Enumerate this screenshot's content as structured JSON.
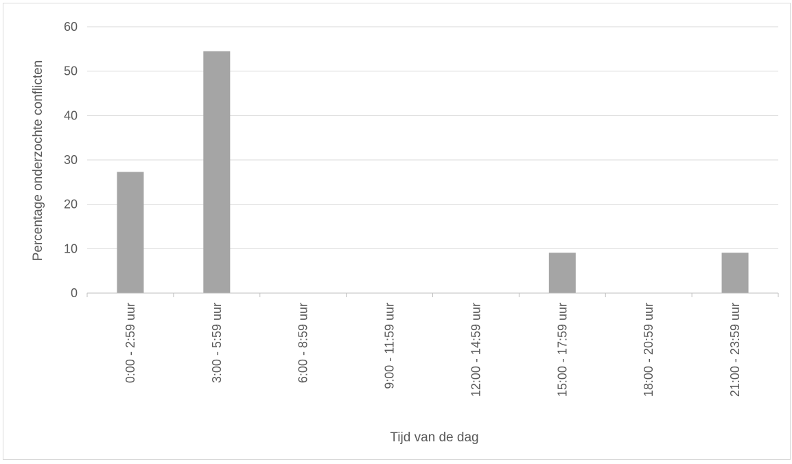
{
  "chart_data": {
    "type": "bar",
    "title": "",
    "xlabel": "Tijd van de dag",
    "ylabel": "Percentage onderzochte conflicten",
    "categories": [
      "0:00 - 2:59 uur",
      "3:00 - 5:59 uur",
      "6:00 - 8:59 uur",
      "9:00 - 11:59 uur",
      "12:00 - 14:59 uur",
      "15:00 - 17:59 uur",
      "18:00 - 20:59 uur",
      "21:00 - 23:59 uur"
    ],
    "values": [
      27.3,
      54.5,
      0,
      0,
      0,
      9.1,
      0,
      9.1
    ],
    "ylim": [
      0,
      60
    ],
    "yticks": [
      0,
      10,
      20,
      30,
      40,
      50,
      60
    ],
    "grid": true,
    "legend": "none",
    "bar_color": "#a5a5a5",
    "grid_color": "#d9d9d9"
  }
}
